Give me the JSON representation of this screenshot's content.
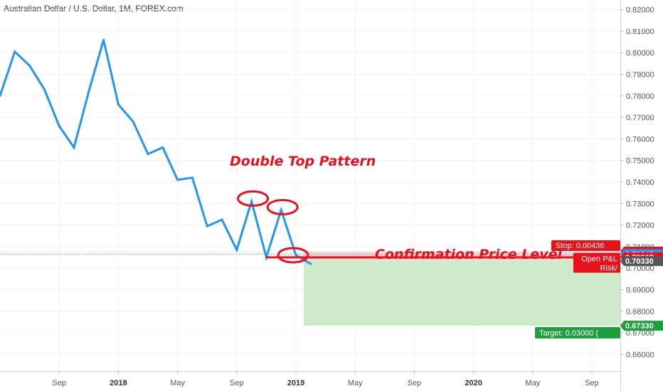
{
  "header": {
    "title": "Australian Dollar / U.S. Dollar, 1M, FOREX.com"
  },
  "annotations": {
    "pattern_title": "Double Top Pattern",
    "confirmation_label": "Confirmation Price Level"
  },
  "position": {
    "stop_label": "Stop: 0.00436",
    "open_pl_label": "Open P&L",
    "risk_label": "Risk/",
    "target_label": "Target: 0.03000 (",
    "stop_price": "0.70766",
    "current_price": "0.70646",
    "open_price": "0.70507",
    "entry_price": "0.70330",
    "target_price": "0.67330"
  },
  "colors": {
    "series": "#2196f3",
    "annotation": "#e8121c",
    "stop_zone": "#f8d7d7",
    "target_zone": "#cdebc8",
    "target_tag": "#1e9e3c",
    "price_tag_blue": "#2196f3",
    "price_tag_dark": "#555555"
  },
  "chart_data": {
    "type": "line",
    "x_ticks": [
      "Sep",
      "2018",
      "May",
      "Sep",
      "2019",
      "May",
      "Sep",
      "2020",
      "May",
      "Sep"
    ],
    "y_ticks": [
      "0.82000",
      "0.81000",
      "0.80000",
      "0.79000",
      "0.78000",
      "0.77000",
      "0.76000",
      "0.75000",
      "0.74000",
      "0.73000",
      "0.72000",
      "0.71000",
      "0.70000",
      "0.69000",
      "0.68000",
      "0.67000",
      "0.66000"
    ],
    "ylim": [
      0.655,
      0.8235
    ],
    "x": [
      "2017-05",
      "2017-06",
      "2017-07",
      "2017-08",
      "2017-09",
      "2017-10",
      "2017-11",
      "2017-12",
      "2018-01",
      "2018-02",
      "2018-03",
      "2018-04",
      "2018-05",
      "2018-06",
      "2018-07",
      "2018-08",
      "2018-09",
      "2018-10",
      "2018-11",
      "2018-12",
      "2019-01",
      "2019-02"
    ],
    "series": [
      {
        "values": [
          0.78,
          0.8005,
          0.794,
          0.783,
          0.766,
          0.756,
          0.782,
          0.806,
          0.776,
          0.768,
          0.753,
          0.756,
          0.741,
          0.742,
          0.7195,
          0.7225,
          0.7085,
          0.731,
          0.705,
          0.727,
          0.706,
          0.702
        ]
      }
    ],
    "highlighted_points": [
      "2018-10",
      "2018-12",
      "2019-01"
    ]
  }
}
